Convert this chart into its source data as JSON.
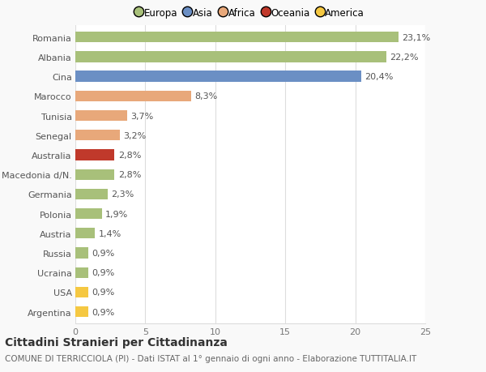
{
  "categories": [
    "Romania",
    "Albania",
    "Cina",
    "Marocco",
    "Tunisia",
    "Senegal",
    "Australia",
    "Macedonia d/N.",
    "Germania",
    "Polonia",
    "Austria",
    "Russia",
    "Ucraina",
    "USA",
    "Argentina"
  ],
  "values": [
    23.1,
    22.2,
    20.4,
    8.3,
    3.7,
    3.2,
    2.8,
    2.8,
    2.3,
    1.9,
    1.4,
    0.9,
    0.9,
    0.9,
    0.9
  ],
  "labels": [
    "23,1%",
    "22,2%",
    "20,4%",
    "8,3%",
    "3,7%",
    "3,2%",
    "2,8%",
    "2,8%",
    "2,3%",
    "1,9%",
    "1,4%",
    "0,9%",
    "0,9%",
    "0,9%",
    "0,9%"
  ],
  "colors": [
    "#a8c07a",
    "#a8c07a",
    "#6b8fc4",
    "#e8a87a",
    "#e8a87a",
    "#e8a87a",
    "#c0392b",
    "#a8c07a",
    "#a8c07a",
    "#a8c07a",
    "#a8c07a",
    "#a8c07a",
    "#a8c07a",
    "#f5c842",
    "#f5c842"
  ],
  "legend_labels": [
    "Europa",
    "Asia",
    "Africa",
    "Oceania",
    "America"
  ],
  "legend_colors": [
    "#a8c07a",
    "#6b8fc4",
    "#e8a87a",
    "#c0392b",
    "#f5c842"
  ],
  "title": "Cittadini Stranieri per Cittadinanza",
  "subtitle": "COMUNE DI TERRICCIOLA (PI) - Dati ISTAT al 1° gennaio di ogni anno - Elaborazione TUTTITALIA.IT",
  "xlim": [
    0,
    25
  ],
  "xticks": [
    0,
    5,
    10,
    15,
    20,
    25
  ],
  "bg_color": "#f9f9f9",
  "plot_bg_color": "#ffffff",
  "grid_color": "#dddddd",
  "bar_height": 0.55,
  "label_fontsize": 8,
  "tick_fontsize": 8,
  "title_fontsize": 10,
  "subtitle_fontsize": 7.5
}
